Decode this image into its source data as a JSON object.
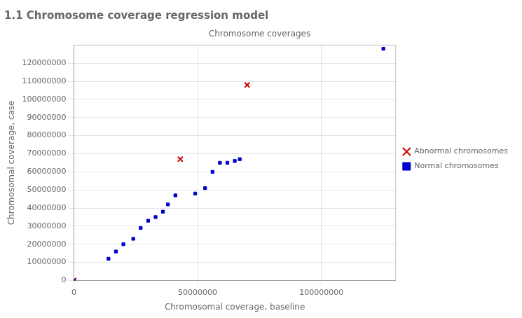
{
  "chart_data": {
    "type": "scatter",
    "title": "1.1 Chromosome coverage regression model",
    "subtitle": "Chromosome coverages",
    "x_label": "Chromosomal coverage, baseline",
    "y_label": "Chromosomal coverage, case",
    "xlim": [
      0,
      130000000
    ],
    "ylim": [
      0,
      130000000
    ],
    "xticks": [
      0,
      50000000,
      100000000
    ],
    "yticks": [
      0,
      10000000,
      20000000,
      30000000,
      40000000,
      50000000,
      60000000,
      70000000,
      80000000,
      90000000,
      100000000,
      110000000,
      120000000
    ],
    "grid": true,
    "legend": "right",
    "series": [
      {
        "name": "Normal chromosomes",
        "color": "#0000cc",
        "marker": "square",
        "x": [
          0,
          14000000,
          17000000,
          20000000,
          24000000,
          27000000,
          30000000,
          33000000,
          36000000,
          38000000,
          41000000,
          49000000,
          53000000,
          56000000,
          59000000,
          62000000,
          65000000,
          67000000,
          125000000
        ],
        "values": [
          0,
          12000000,
          16000000,
          20000000,
          23000000,
          29000000,
          33000000,
          35000000,
          38000000,
          42000000,
          47000000,
          48000000,
          51000000,
          60000000,
          65000000,
          65000000,
          66000000,
          67000000,
          128000000
        ]
      },
      {
        "name": "Abnormal chromosomes",
        "color": "#cc0000",
        "marker": "x",
        "x": [
          0,
          43000000,
          70000000
        ],
        "values": [
          0,
          67000000,
          108000000
        ]
      }
    ]
  }
}
